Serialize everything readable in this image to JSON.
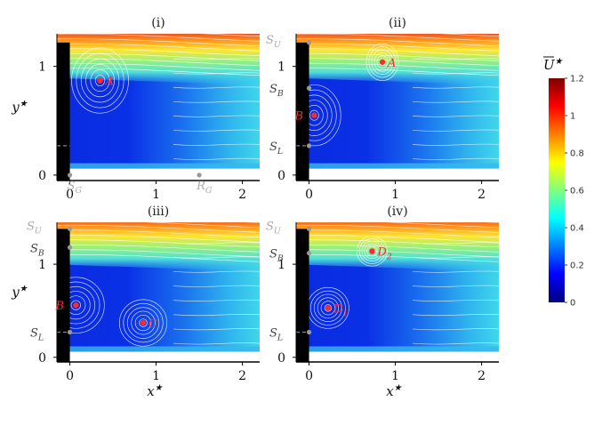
{
  "chart_data": [
    {
      "type": "heatmap",
      "title": "(i)",
      "xlabel": "",
      "ylabel": "y*",
      "xlim": [
        -0.15,
        2.2
      ],
      "ylim": [
        -0.05,
        1.3
      ],
      "xticks": [
        0,
        1,
        2
      ],
      "yticks": [
        0,
        1
      ],
      "body_height": 1.22,
      "shear_layer_y": 1.22,
      "floor_gap": 0.06,
      "reference_lines": [
        0.27
      ],
      "points": [
        {
          "name": "A",
          "x": 0.35,
          "y": 0.87
        }
      ],
      "markers": [
        {
          "label": "S_G",
          "x": 0.0,
          "y": 0.0,
          "color": "#aaaaaa"
        },
        {
          "label": "R_G",
          "x": 1.5,
          "y": 0.0,
          "color": "#aaaaaa"
        }
      ],
      "vortices": [
        {
          "x": 0.35,
          "y": 0.87,
          "r": 0.3
        }
      ]
    },
    {
      "type": "heatmap",
      "title": "(ii)",
      "xlabel": "",
      "ylabel": "",
      "xlim": [
        -0.15,
        2.2
      ],
      "ylim": [
        -0.05,
        1.3
      ],
      "xticks": [
        0,
        1,
        2
      ],
      "yticks": [
        0,
        1
      ],
      "body_height": 1.22,
      "shear_layer_y": 1.22,
      "floor_gap": 0.06,
      "reference_lines": [
        0.27
      ],
      "points": [
        {
          "name": "A",
          "x": 0.85,
          "y": 1.04
        },
        {
          "name": "B",
          "x": 0.06,
          "y": 0.55
        }
      ],
      "markers": [
        {
          "label": "S_U",
          "x": 0.0,
          "y": 1.22,
          "color": "#aaaaaa"
        },
        {
          "label": "S_B",
          "x": 0.0,
          "y": 0.8,
          "color": "#444444"
        },
        {
          "label": "S_L",
          "x": 0.0,
          "y": 0.27,
          "color": "#444444"
        }
      ],
      "vortices": [
        {
          "x": 0.85,
          "y": 1.04,
          "r": 0.17
        },
        {
          "x": 0.06,
          "y": 0.55,
          "r": 0.28
        }
      ]
    },
    {
      "type": "heatmap",
      "title": "(iii)",
      "xlabel": "",
      "ylabel": "y*",
      "xlim": [
        -0.15,
        2.2
      ],
      "ylim": [
        -0.05,
        1.45
      ],
      "xticks": [
        0,
        1,
        2
      ],
      "yticks": [
        0,
        1
      ],
      "body_height": 1.38,
      "shear_layer_y": 1.38,
      "floor_gap": 0.06,
      "reference_lines": [
        0.27
      ],
      "points": [
        {
          "name": "B",
          "x": 0.07,
          "y": 0.56
        },
        {
          "name": "C",
          "x": 0.85,
          "y": 0.37
        }
      ],
      "markers": [
        {
          "label": "S_U",
          "x": 0.0,
          "y": 1.38,
          "color": "#aaaaaa"
        },
        {
          "label": "S_B",
          "x": 0.0,
          "y": 1.18,
          "color": "#444444"
        },
        {
          "label": "S_L",
          "x": 0.0,
          "y": 0.27,
          "color": "#444444"
        }
      ],
      "vortices": [
        {
          "x": 0.07,
          "y": 0.56,
          "r": 0.3
        },
        {
          "x": 0.85,
          "y": 0.37,
          "r": 0.25
        }
      ]
    },
    {
      "type": "heatmap",
      "title": "(iv)",
      "xlabel": "",
      "ylabel": "",
      "xlim": [
        -0.15,
        2.2
      ],
      "ylim": [
        -0.05,
        1.45
      ],
      "xticks": [
        0,
        1,
        2
      ],
      "yticks": [
        0,
        1
      ],
      "body_height": 1.38,
      "shear_layer_y": 1.38,
      "floor_gap": 0.06,
      "reference_lines": [
        0.27
      ],
      "points": [
        {
          "name": "D_1",
          "x": 0.22,
          "y": 0.53
        },
        {
          "name": "D_2",
          "x": 0.73,
          "y": 1.14
        }
      ],
      "markers": [
        {
          "label": "S_U",
          "x": 0.0,
          "y": 1.38,
          "color": "#aaaaaa"
        },
        {
          "label": "S_B",
          "x": 0.0,
          "y": 1.12,
          "color": "#444444"
        },
        {
          "label": "S_L",
          "x": 0.0,
          "y": 0.27,
          "color": "#444444"
        }
      ],
      "vortices": [
        {
          "x": 0.22,
          "y": 0.53,
          "r": 0.22
        },
        {
          "x": 0.73,
          "y": 1.14,
          "r": 0.16
        }
      ]
    }
  ],
  "shared_x_label": "x*",
  "colorbar": {
    "title": "U*",
    "min": 0,
    "max": 1.2,
    "ticks": [
      "0",
      "0.2",
      "0.4",
      "0.6",
      "0.8",
      "1",
      "1.2"
    ],
    "colormap": [
      "#00007f",
      "#0000ff",
      "#007fff",
      "#00ffff",
      "#7fff7f",
      "#ffff00",
      "#ff7f00",
      "#ff0000",
      "#7f0000"
    ]
  },
  "style": {
    "point_color": "#ff2a2a",
    "body_color": "#000000",
    "streamline_color": "#ffffff",
    "blue": "#0a2be0",
    "cyan": "#33ccee"
  }
}
